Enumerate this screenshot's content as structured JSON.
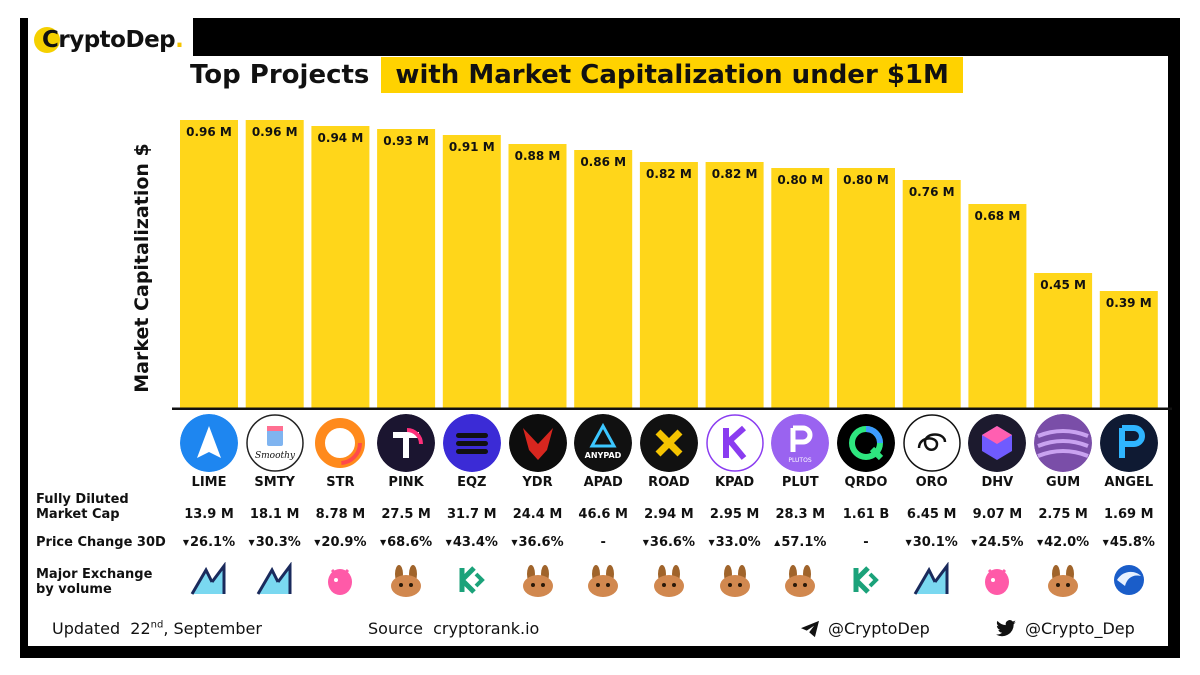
{
  "brand": {
    "name": "CryptoDep",
    "period": "."
  },
  "title": {
    "part1": "Top Projects",
    "part2": "with Market Capitalization under $1M"
  },
  "chart_data": {
    "type": "bar",
    "ylabel": "Market Capitalization $",
    "xlabel": "",
    "ylim": [
      0,
      1.0
    ],
    "bar_color": "#ffd61a",
    "categories": [
      "LIME",
      "SMTY",
      "STR",
      "PINK",
      "EQZ",
      "YDR",
      "APAD",
      "ROAD",
      "KPAD",
      "PLUT",
      "QRDO",
      "ORO",
      "DHV",
      "GUM",
      "ANGEL"
    ],
    "values": [
      0.96,
      0.96,
      0.94,
      0.93,
      0.91,
      0.88,
      0.86,
      0.82,
      0.82,
      0.8,
      0.8,
      0.76,
      0.68,
      0.45,
      0.39
    ],
    "labels": [
      "0.96 M",
      "0.96 M",
      "0.94 M",
      "0.93 M",
      "0.91 M",
      "0.88 M",
      "0.86 M",
      "0.82 M",
      "0.82 M",
      "0.80 M",
      "0.80 M",
      "0.76 M",
      "0.68 M",
      "0.45 M",
      "0.39 M"
    ]
  },
  "rows": {
    "fdmc_label": [
      "Fully Diluted",
      "Market Cap"
    ],
    "price_label": "Price Change 30D",
    "exchange_label": [
      "Major Exchange",
      "by volume"
    ]
  },
  "projects": [
    {
      "ticker": "LIME",
      "icon": "lime-icon",
      "fdmc": "13.9 M",
      "change": "26.1%",
      "dir": "down",
      "exchange": "ascendex-icon"
    },
    {
      "ticker": "SMTY",
      "icon": "smoothy-icon",
      "icon_text": "Smoothy",
      "fdmc": "18.1 M",
      "change": "30.3%",
      "dir": "down",
      "exchange": "ascendex-icon"
    },
    {
      "ticker": "STR",
      "icon": "str-ring-icon",
      "fdmc": "8.78 M",
      "change": "20.9%",
      "dir": "down",
      "exchange": "uniswap-icon"
    },
    {
      "ticker": "PINK",
      "icon": "pink-icon",
      "fdmc": "27.5 M",
      "change": "68.6%",
      "dir": "down",
      "exchange": "pancakeswap-icon"
    },
    {
      "ticker": "EQZ",
      "icon": "eqz-icon",
      "fdmc": "31.7 M",
      "change": "43.4%",
      "dir": "down",
      "exchange": "kucoin-icon"
    },
    {
      "ticker": "YDR",
      "icon": "ydr-icon",
      "fdmc": "24.4 M",
      "change": "36.6%",
      "dir": "down",
      "exchange": "pancakeswap-icon"
    },
    {
      "ticker": "APAD",
      "icon": "anypad-icon",
      "icon_text": "ANYPAD",
      "fdmc": "46.6 M",
      "change": "-",
      "dir": "none",
      "exchange": "pancakeswap-icon"
    },
    {
      "ticker": "ROAD",
      "icon": "road-icon",
      "fdmc": "2.94 M",
      "change": "36.6%",
      "dir": "down",
      "exchange": "pancakeswap-icon"
    },
    {
      "ticker": "KPAD",
      "icon": "kpad-icon",
      "fdmc": "2.95 M",
      "change": "33.0%",
      "dir": "down",
      "exchange": "pancakeswap-icon"
    },
    {
      "ticker": "PLUT",
      "icon": "plutos-icon",
      "icon_text": "PLUTOS",
      "fdmc": "28.3 M",
      "change": "57.1%",
      "dir": "up",
      "exchange": "pancakeswap-icon"
    },
    {
      "ticker": "QRDO",
      "icon": "qredo-icon",
      "fdmc": "1.61 B",
      "change": "-",
      "dir": "none",
      "exchange": "kucoin-icon"
    },
    {
      "ticker": "ORO",
      "icon": "oro-icon",
      "fdmc": "6.45 M",
      "change": "30.1%",
      "dir": "down",
      "exchange": "ascendex-icon"
    },
    {
      "ticker": "DHV",
      "icon": "dhv-icon",
      "fdmc": "9.07 M",
      "change": "24.5%",
      "dir": "down",
      "exchange": "uniswap-icon"
    },
    {
      "ticker": "GUM",
      "icon": "gum-icon",
      "fdmc": "2.75 M",
      "change": "42.0%",
      "dir": "down",
      "exchange": "pancakeswap-icon"
    },
    {
      "ticker": "ANGEL",
      "icon": "angel-icon",
      "fdmc": "1.69 M",
      "change": "45.8%",
      "dir": "down",
      "exchange": "bitmart-icon"
    }
  ],
  "footer": {
    "updated_prefix": "Updated",
    "day": "22",
    "day_suffix": "nd",
    "month": ", September",
    "source_label": "Source",
    "source": "cryptorank.io",
    "telegram": "@CryptoDep",
    "twitter": "@Crypto_Dep"
  },
  "colors": {
    "accent": "#ffd200",
    "frame": "#000000"
  }
}
